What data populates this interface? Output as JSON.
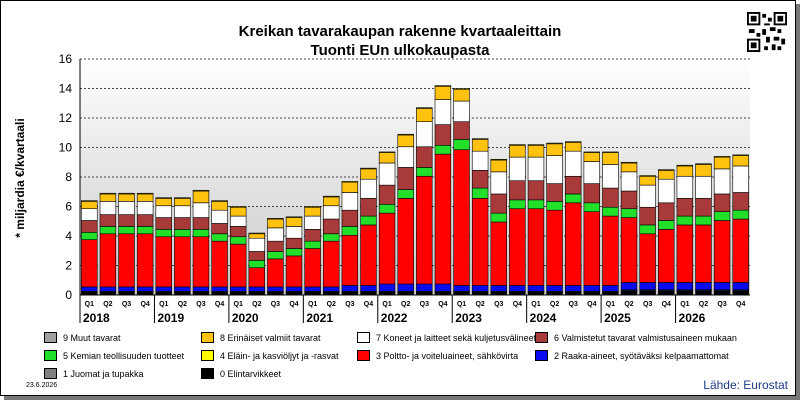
{
  "title_lines": [
    "Kreikan tavarakaupan rakenne kvartaaleittain",
    "Tuonti EUn ulkokaupasta"
  ],
  "date_stamp": "23.6.2026",
  "source": "Lähde: Eurostat",
  "chart_data": {
    "type": "bar",
    "stacked": true,
    "ylabel": "* miljardia €/kvartaali",
    "ylim": [
      0,
      16
    ],
    "yticks": [
      0,
      2,
      4,
      6,
      8,
      10,
      12,
      14,
      16
    ],
    "grid": true,
    "quarter_labels": [
      "Q1",
      "Q2",
      "Q3",
      "Q4",
      "Q1",
      "Q2",
      "Q3",
      "Q4",
      "Q1",
      "Q2",
      "Q3",
      "Q4",
      "Q1",
      "Q2",
      "Q3",
      "Q4",
      "Q1",
      "Q2",
      "Q3",
      "Q4",
      "Q1",
      "Q2",
      "Q3",
      "Q4",
      "Q1",
      "Q2",
      "Q3",
      "Q4",
      "Q1",
      "Q2",
      "Q3",
      "Q4",
      "Q1",
      "Q2",
      "Q3",
      "Q4"
    ],
    "year_labels": [
      "2018",
      "2019",
      "2020",
      "2021",
      "2022",
      "2023",
      "2024",
      "2025",
      "2026"
    ],
    "series": [
      {
        "name": "0 Elintarvikkeet",
        "color": "#000000",
        "values": [
          0.2,
          0.2,
          0.2,
          0.2,
          0.2,
          0.2,
          0.2,
          0.2,
          0.2,
          0.2,
          0.2,
          0.2,
          0.2,
          0.2,
          0.2,
          0.2,
          0.2,
          0.2,
          0.2,
          0.2,
          0.2,
          0.2,
          0.2,
          0.2,
          0.2,
          0.2,
          0.2,
          0.2,
          0.2,
          0.3,
          0.3,
          0.3,
          0.3,
          0.3,
          0.3,
          0.3
        ]
      },
      {
        "name": "1 Juomat ja tupakka",
        "color": "#808080",
        "values": [
          0.05,
          0.05,
          0.05,
          0.05,
          0.05,
          0.05,
          0.05,
          0.05,
          0.05,
          0.05,
          0.05,
          0.05,
          0.05,
          0.05,
          0.05,
          0.05,
          0.05,
          0.05,
          0.05,
          0.05,
          0.05,
          0.05,
          0.05,
          0.05,
          0.05,
          0.05,
          0.05,
          0.05,
          0.05,
          0.05,
          0.05,
          0.05,
          0.05,
          0.05,
          0.05,
          0.05
        ]
      },
      {
        "name": "2 Raaka-aineet, syötäväksi kelpaamattomat",
        "color": "#0a0af0",
        "values": [
          0.3,
          0.3,
          0.3,
          0.3,
          0.3,
          0.3,
          0.3,
          0.3,
          0.3,
          0.3,
          0.3,
          0.3,
          0.3,
          0.3,
          0.4,
          0.4,
          0.5,
          0.5,
          0.5,
          0.5,
          0.4,
          0.4,
          0.4,
          0.4,
          0.4,
          0.4,
          0.4,
          0.4,
          0.4,
          0.5,
          0.5,
          0.5,
          0.5,
          0.5,
          0.5,
          0.5
        ]
      },
      {
        "name": "3 Poltto- ja voiteluaineet, sähkövirta",
        "color": "#ff0000",
        "values": [
          3.2,
          3.6,
          3.6,
          3.6,
          3.4,
          3.4,
          3.4,
          3.1,
          2.9,
          1.3,
          1.9,
          2.1,
          2.6,
          3.1,
          3.4,
          4.1,
          4.8,
          5.8,
          7.3,
          8.8,
          9.2,
          5.9,
          4.3,
          5.2,
          5.2,
          5.1,
          5.6,
          5.0,
          4.7,
          4.4,
          3.3,
          3.6,
          3.9,
          3.9,
          4.2,
          4.3
        ]
      },
      {
        "name": "5 Kemian teollisuuden tuotteet",
        "color": "#22e02a",
        "values": [
          0.5,
          0.5,
          0.5,
          0.5,
          0.5,
          0.5,
          0.5,
          0.5,
          0.5,
          0.5,
          0.5,
          0.5,
          0.5,
          0.5,
          0.6,
          0.6,
          0.6,
          0.6,
          0.6,
          0.6,
          0.7,
          0.7,
          0.6,
          0.6,
          0.6,
          0.6,
          0.6,
          0.6,
          0.6,
          0.6,
          0.6,
          0.6,
          0.6,
          0.6,
          0.6,
          0.6
        ]
      },
      {
        "name": "6 Valmistetut tavarat valmistusaineen mukaan",
        "color": "#a93a3a",
        "values": [
          0.8,
          0.8,
          0.8,
          0.8,
          0.8,
          0.8,
          0.8,
          0.7,
          0.7,
          0.6,
          0.7,
          0.7,
          0.8,
          1.0,
          1.1,
          1.2,
          1.3,
          1.5,
          1.4,
          1.4,
          1.2,
          1.2,
          1.3,
          1.3,
          1.3,
          1.2,
          1.2,
          1.3,
          1.3,
          1.2,
          1.2,
          1.2,
          1.2,
          1.2,
          1.2,
          1.2
        ]
      },
      {
        "name": "7 Koneet ja laitteet sekä kuljetusvälineet",
        "color": "#ffffff",
        "values": [
          0.8,
          0.9,
          0.9,
          0.9,
          0.8,
          0.8,
          1.0,
          0.9,
          0.7,
          0.9,
          0.9,
          0.8,
          0.9,
          0.9,
          1.2,
          1.3,
          1.5,
          1.4,
          1.7,
          1.7,
          1.4,
          1.3,
          1.5,
          1.6,
          1.6,
          1.9,
          1.7,
          1.5,
          1.6,
          1.3,
          1.5,
          1.6,
          1.5,
          1.5,
          1.7,
          1.8
        ]
      },
      {
        "name": "8 Erinäiset valmiit tavarat",
        "color": "#ffc20e",
        "values": [
          0.5,
          0.5,
          0.5,
          0.5,
          0.5,
          0.5,
          0.8,
          0.6,
          0.6,
          0.3,
          0.6,
          0.6,
          0.6,
          0.6,
          0.7,
          0.7,
          0.7,
          0.8,
          0.9,
          0.9,
          0.8,
          0.8,
          0.8,
          0.8,
          0.8,
          0.8,
          0.6,
          0.6,
          0.8,
          0.6,
          0.6,
          0.6,
          0.7,
          0.8,
          0.8,
          0.7
        ]
      },
      {
        "name": "4 Eläin- ja kasviöljyt ja -rasvat",
        "color": "#ffff00",
        "values": [
          0.05,
          0.05,
          0.05,
          0.05,
          0.05,
          0.05,
          0.05,
          0.05,
          0.05,
          0.05,
          0.05,
          0.05,
          0.05,
          0.05,
          0.05,
          0.05,
          0.05,
          0.05,
          0.05,
          0.05,
          0.05,
          0.05,
          0.05,
          0.05,
          0.05,
          0.05,
          0.05,
          0.05,
          0.05,
          0.05,
          0.05,
          0.05,
          0.05,
          0.05,
          0.05,
          0.05
        ]
      },
      {
        "name": "9 Muut tavarat",
        "color": "#a0a0a0",
        "values": [
          0,
          0,
          0,
          0,
          0,
          0,
          0,
          0,
          0,
          0,
          0,
          0,
          0,
          0,
          0,
          0,
          0,
          0,
          0,
          0,
          0,
          0,
          0,
          0,
          0,
          0,
          0,
          0,
          0,
          0,
          0,
          0,
          0,
          0,
          0,
          0
        ]
      }
    ]
  },
  "legend": [
    {
      "label": "9 Muut tavarat",
      "color": "#a0a0a0"
    },
    {
      "label": "8 Erinäiset valmiit tavarat",
      "color": "#ffc20e"
    },
    {
      "label": "7 Koneet ja laitteet sekä kuljetusvälineet",
      "color": "#ffffff"
    },
    {
      "label": "6 Valmistetut tavarat valmistusaineen mukaan",
      "color": "#a93a3a"
    },
    {
      "label": "5 Kemian teollisuuden tuotteet",
      "color": "#22e02a"
    },
    {
      "label": "4 Eläin- ja kasviöljyt ja -rasvat",
      "color": "#ffff00"
    },
    {
      "label": "3 Poltto- ja voiteluaineet, sähkövirta",
      "color": "#ff0000"
    },
    {
      "label": "2 Raaka-aineet, syötäväksi kelpaamattomat",
      "color": "#0a0af0"
    },
    {
      "label": "1 Juomat ja tupakka",
      "color": "#808080"
    },
    {
      "label": "0 Elintarvikkeet",
      "color": "#000000"
    }
  ]
}
